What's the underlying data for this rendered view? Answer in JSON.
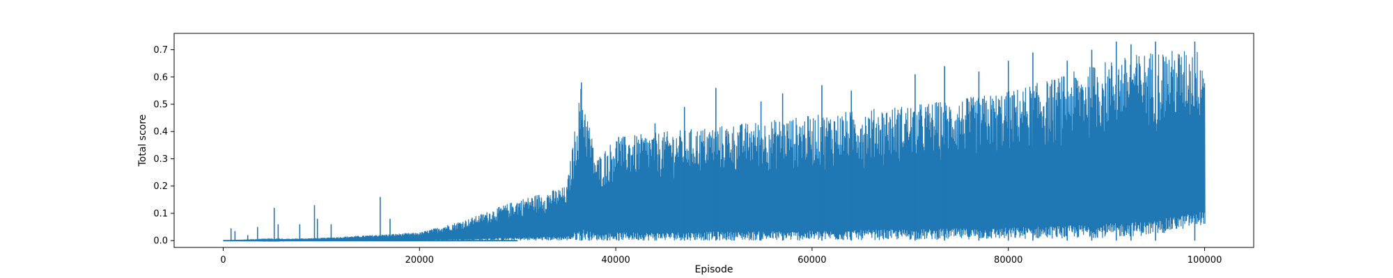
{
  "chart_data": {
    "type": "line",
    "title": "",
    "xlabel": "Episode",
    "ylabel": "Total score",
    "xlim": [
      -5000,
      105000
    ],
    "ylim": [
      -0.025,
      0.76
    ],
    "xticks": [
      0,
      20000,
      40000,
      60000,
      80000,
      100000
    ],
    "xtick_labels": [
      "0",
      "20000",
      "40000",
      "60000",
      "80000",
      "100000"
    ],
    "yticks": [
      0.0,
      0.1,
      0.2,
      0.3,
      0.4,
      0.5,
      0.6,
      0.7
    ],
    "ytick_labels": [
      "0.0",
      "0.1",
      "0.2",
      "0.3",
      "0.4",
      "0.5",
      "0.6",
      "0.7"
    ],
    "grid": false,
    "series": [
      {
        "color": "#1f77b4",
        "episodes": 100000,
        "upper_envelope": {
          "x": [
            0,
            10000,
            20000,
            25000,
            30000,
            35000,
            36500,
            38000,
            40000,
            45000,
            50000,
            55000,
            60000,
            65000,
            70000,
            75000,
            80000,
            85000,
            90000,
            95000,
            100000
          ],
          "y": [
            0.0,
            0.01,
            0.03,
            0.08,
            0.15,
            0.2,
            0.58,
            0.3,
            0.38,
            0.4,
            0.42,
            0.44,
            0.46,
            0.48,
            0.5,
            0.52,
            0.55,
            0.6,
            0.66,
            0.7,
            0.7
          ]
        },
        "lower_envelope": {
          "x": [
            0,
            20000,
            30000,
            60000,
            80000,
            90000,
            95000,
            100000
          ],
          "y": [
            0.0,
            0.0,
            0.0,
            0.0,
            0.005,
            0.01,
            0.02,
            0.06
          ]
        },
        "spikes": [
          {
            "x": 800,
            "y": 0.045
          },
          {
            "x": 1200,
            "y": 0.035
          },
          {
            "x": 2500,
            "y": 0.02
          },
          {
            "x": 3500,
            "y": 0.05
          },
          {
            "x": 5200,
            "y": 0.12
          },
          {
            "x": 5600,
            "y": 0.06
          },
          {
            "x": 7800,
            "y": 0.06
          },
          {
            "x": 9300,
            "y": 0.13
          },
          {
            "x": 9600,
            "y": 0.08
          },
          {
            "x": 11000,
            "y": 0.06
          },
          {
            "x": 16000,
            "y": 0.16
          },
          {
            "x": 17000,
            "y": 0.08
          },
          {
            "x": 36500,
            "y": 0.58
          },
          {
            "x": 40300,
            "y": 0.38
          },
          {
            "x": 44000,
            "y": 0.43
          },
          {
            "x": 47000,
            "y": 0.49
          },
          {
            "x": 50200,
            "y": 0.56
          },
          {
            "x": 54800,
            "y": 0.51
          },
          {
            "x": 57000,
            "y": 0.54
          },
          {
            "x": 61000,
            "y": 0.57
          },
          {
            "x": 64000,
            "y": 0.55
          },
          {
            "x": 70500,
            "y": 0.61
          },
          {
            "x": 73500,
            "y": 0.64
          },
          {
            "x": 77000,
            "y": 0.62
          },
          {
            "x": 80000,
            "y": 0.66
          },
          {
            "x": 82500,
            "y": 0.69
          },
          {
            "x": 86000,
            "y": 0.66
          },
          {
            "x": 88500,
            "y": 0.7
          },
          {
            "x": 91000,
            "y": 0.73
          },
          {
            "x": 92500,
            "y": 0.72
          },
          {
            "x": 95000,
            "y": 0.73
          },
          {
            "x": 99000,
            "y": 0.73
          }
        ]
      }
    ]
  }
}
